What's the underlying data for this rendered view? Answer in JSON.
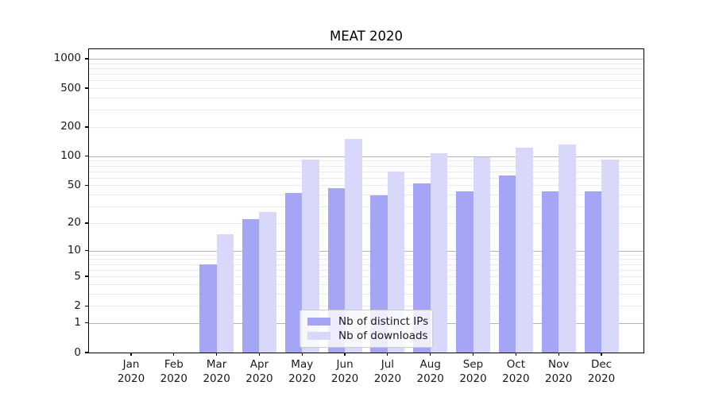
{
  "chart_data": {
    "type": "bar",
    "title": "MEAT 2020",
    "y_scale": "log1p (symlog)",
    "grid": "on",
    "legend_position": "lower center inside plot",
    "categories": [
      "Jan",
      "Feb",
      "Mar",
      "Apr",
      "May",
      "Jun",
      "Jul",
      "Aug",
      "Sep",
      "Oct",
      "Nov",
      "Dec"
    ],
    "category_year": "2020",
    "series": [
      {
        "name": "Nb of distinct IPs",
        "color": "#a5a5f5",
        "values": [
          0,
          0,
          7,
          22,
          42,
          47,
          39,
          52,
          43,
          63,
          43,
          43
        ]
      },
      {
        "name": "Nb of downloads",
        "color": "#d8d8fa",
        "values": [
          0,
          0,
          15,
          26,
          93,
          150,
          70,
          108,
          97,
          123,
          133,
          93
        ]
      }
    ],
    "y_ticks_labeled": [
      0,
      1,
      2,
      5,
      10,
      20,
      50,
      100,
      200,
      500,
      1000
    ],
    "y_grid_major": [
      1,
      10,
      100,
      1000
    ],
    "y_grid_minor": [
      2,
      3,
      4,
      5,
      6,
      7,
      8,
      9,
      20,
      30,
      40,
      50,
      60,
      70,
      80,
      90,
      200,
      300,
      400,
      500,
      600,
      700,
      800,
      900
    ],
    "ylim": [
      0,
      1250
    ],
    "colors": {
      "grid_major": "#b3b3b3",
      "grid_minor": "#e9e9ef",
      "axis": "#000000",
      "text": "#1a1a1a",
      "legend_border": "#cccccc",
      "background": "#ffffff"
    }
  }
}
